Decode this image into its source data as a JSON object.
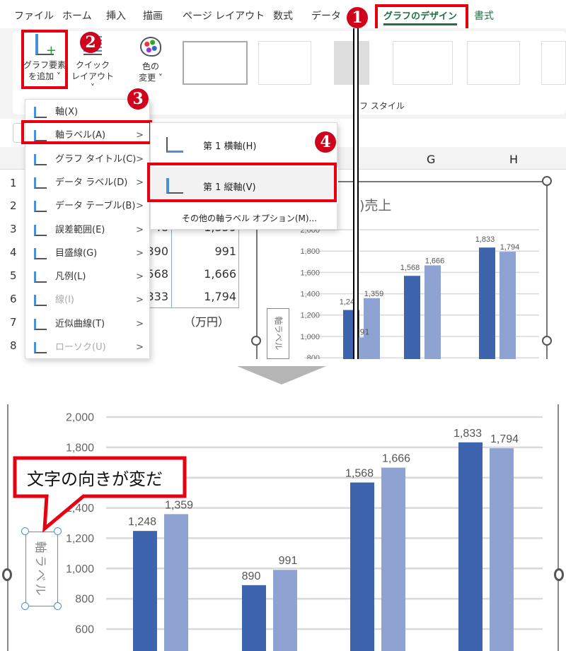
{
  "tabs": [
    "ファイル",
    "ホーム",
    "挿入",
    "描画",
    "ページ レイアウト",
    "数式",
    "データ",
    "グラフのデザイン",
    "書式"
  ],
  "ribbon": {
    "add_element": [
      "グラフ要素",
      "を追加 ˅"
    ],
    "quick_layout": [
      "クイック",
      "レイアウト ˅"
    ],
    "change_color": [
      "色の",
      "変更 ˅"
    ],
    "styles_group": "フ スタイル"
  },
  "badges": [
    "1",
    "2",
    "3",
    "4"
  ],
  "menu": {
    "items": [
      {
        "label": "軸(X)",
        "arrow": ""
      },
      {
        "label": "軸ラベル(A)",
        "arrow": ">"
      },
      {
        "label": "グラフ タイトル(C)",
        "arrow": ">"
      },
      {
        "label": "データ ラベル(D)",
        "arrow": ">"
      },
      {
        "label": "データ テーブル(B)",
        "arrow": ">"
      },
      {
        "label": "誤差範囲(E)",
        "arrow": ">"
      },
      {
        "label": "目盛線(G)",
        "arrow": ">"
      },
      {
        "label": "凡例(L)",
        "arrow": ">"
      },
      {
        "label": "線(I)",
        "arrow": ">"
      },
      {
        "label": "近似曲線(T)",
        "arrow": ">"
      },
      {
        "label": "ローソク(U)",
        "arrow": ">"
      }
    ]
  },
  "submenu": {
    "horizontal": "第 1 横軸(H)",
    "vertical": "第 1 縦軸(V)",
    "more": "その他の軸ラベル オプション(M)..."
  },
  "sheet": {
    "columns": [
      "G",
      "H"
    ],
    "rows": [
      "1",
      "2",
      "3",
      "4",
      "5",
      "6",
      "7",
      "8"
    ],
    "cells": [
      [
        "48",
        "1,359"
      ],
      [
        "390",
        "991"
      ],
      [
        "568",
        "1,666"
      ],
      [
        "333",
        "1,794"
      ]
    ],
    "unit": "（万円）"
  },
  "chart_title_fragment": ")売上",
  "axis_label_text": "軸ラベル",
  "callout": "文字の向きが変だ",
  "chart_data": {
    "type": "bar",
    "series": [
      {
        "values": [
          1248,
          890,
          1568,
          1833
        ],
        "color": "#3d64ad"
      },
      {
        "values": [
          1359,
          991,
          1666,
          1794
        ],
        "color": "#8fa3d3"
      }
    ],
    "data_labels": [
      [
        "1,248",
        "890",
        "1,568",
        "1,833"
      ],
      [
        "1,359",
        "991",
        "1,666",
        "1,794"
      ]
    ],
    "yticks": [
      "600",
      "800",
      "1,000",
      "1,200",
      "1,400",
      "1,600",
      "1,800",
      "2,000"
    ],
    "ylim": [
      600,
      2000
    ],
    "grid": true
  }
}
